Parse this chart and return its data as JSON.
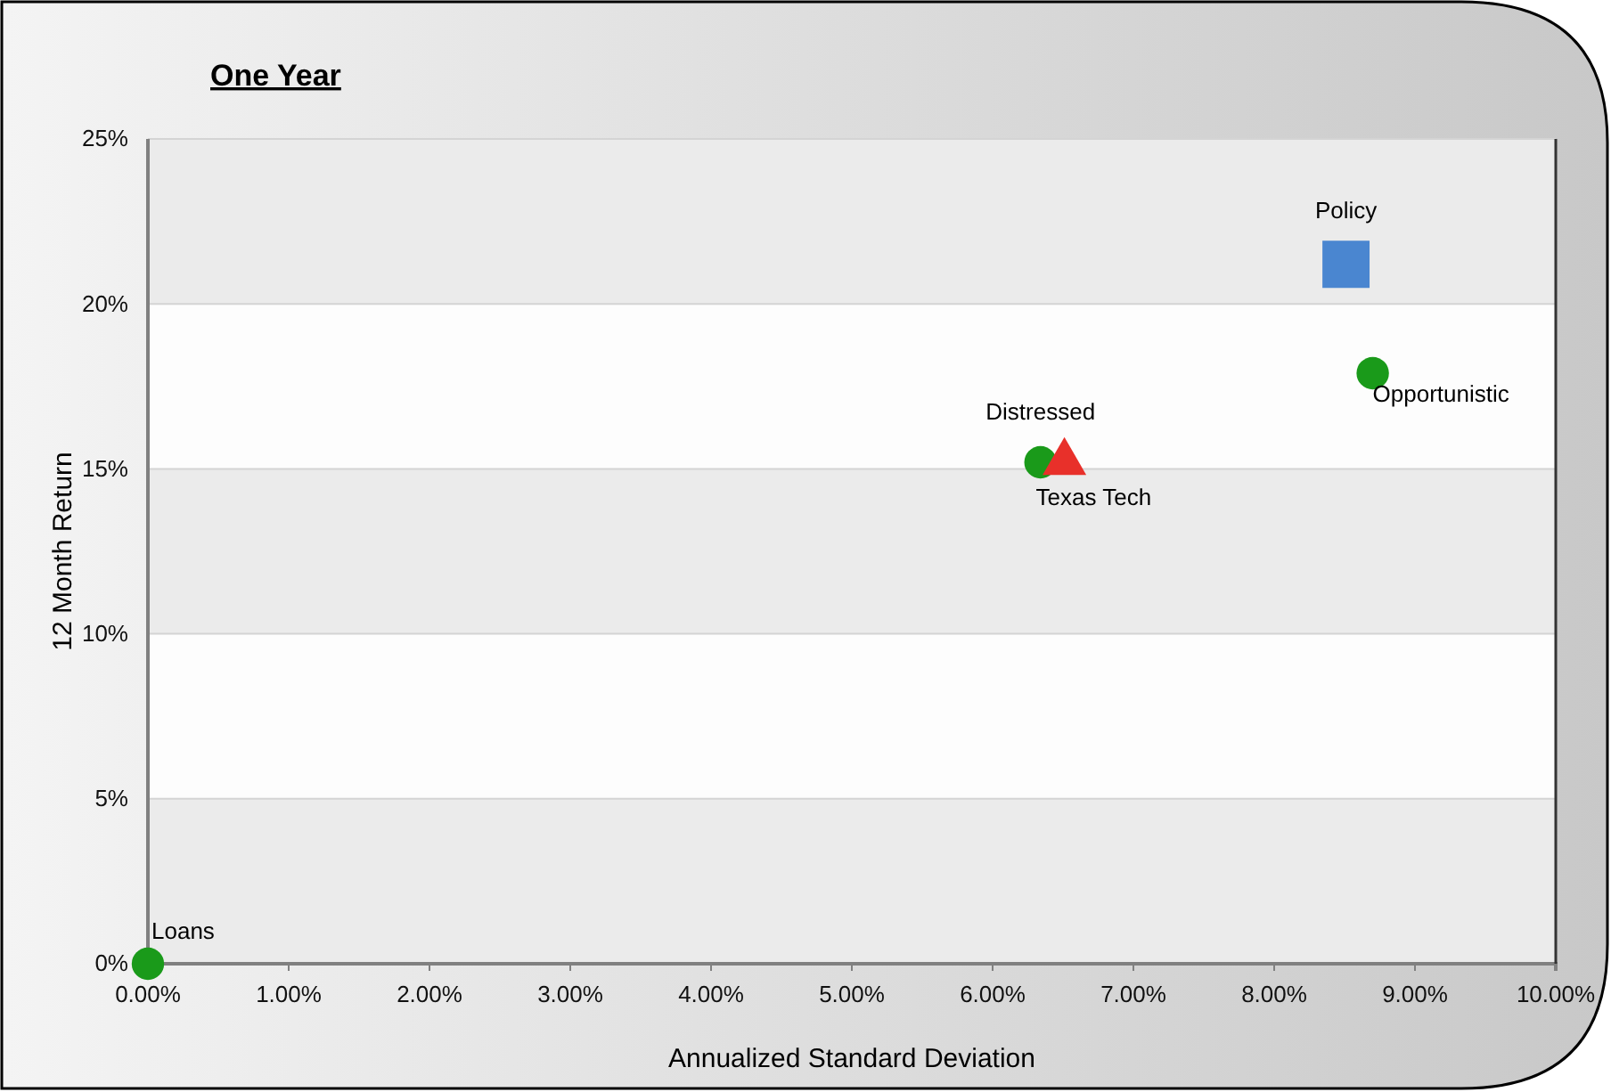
{
  "chart_data": {
    "type": "scatter",
    "title": "One Year",
    "xlabel": "Annualized Standard Deviation",
    "ylabel": "12 Month Return",
    "xlim": [
      0,
      10
    ],
    "xticks": [
      {
        "value": 0,
        "label": "0.00%"
      },
      {
        "value": 1,
        "label": "1.00%"
      },
      {
        "value": 2,
        "label": "2.00%"
      },
      {
        "value": 3,
        "label": "3.00%"
      },
      {
        "value": 4,
        "label": "4.00%"
      },
      {
        "value": 5,
        "label": "5.00%"
      },
      {
        "value": 6,
        "label": "6.00%"
      },
      {
        "value": 7,
        "label": "7.00%"
      },
      {
        "value": 8,
        "label": "8.00%"
      },
      {
        "value": 9,
        "label": "9.00%"
      },
      {
        "value": 10,
        "label": "10.00%"
      }
    ],
    "ylim": [
      0,
      25
    ],
    "yticks": [
      {
        "value": 0,
        "label": "0%"
      },
      {
        "value": 5,
        "label": "5%"
      },
      {
        "value": 10,
        "label": "10%"
      },
      {
        "value": 15,
        "label": "15%"
      },
      {
        "value": 20,
        "label": "20%"
      },
      {
        "value": 25,
        "label": "25%"
      }
    ],
    "grid": "y",
    "series": [
      {
        "name": "Loans",
        "color": "#1a9a1a",
        "marker": "circle",
        "x": [
          0
        ],
        "values": [
          0
        ]
      },
      {
        "name": "Distressed",
        "color": "#1a9a1a",
        "marker": "circle",
        "x": [
          6.34
        ],
        "values": [
          15.2
        ]
      },
      {
        "name": "Texas Tech",
        "color": "#e8302a",
        "marker": "triangle",
        "x": [
          6.51
        ],
        "values": [
          15.2
        ]
      },
      {
        "name": "Policy",
        "color": "#4a86d0",
        "marker": "square",
        "x": [
          8.51
        ],
        "values": [
          21.2
        ]
      },
      {
        "name": "Opportunistic",
        "color": "#1a9a1a",
        "marker": "circle",
        "x": [
          8.7
        ],
        "values": [
          17.9
        ]
      }
    ]
  }
}
